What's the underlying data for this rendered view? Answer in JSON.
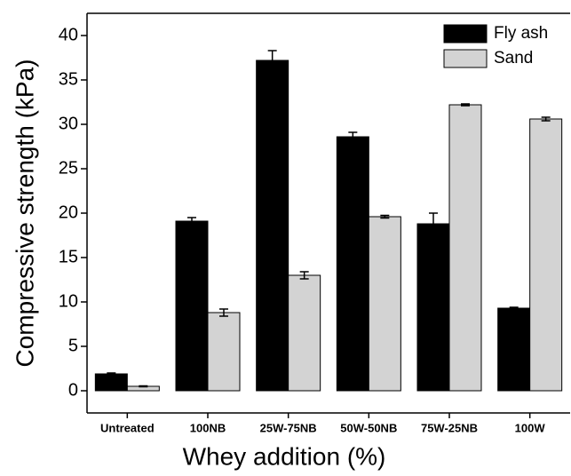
{
  "chart_data": {
    "type": "bar",
    "x_label": "Whey addition (%)",
    "y_label": "Compressive strength (kPa)",
    "categories": [
      "Untreated",
      "100NB",
      "25W-75NB",
      "50W-50NB",
      "75W-25NB",
      "100W"
    ],
    "series": [
      {
        "name": "Fly ash",
        "color": "#000000",
        "values": [
          1.9,
          19.1,
          37.2,
          28.6,
          18.8,
          9.3
        ],
        "errors": [
          0.1,
          0.4,
          1.1,
          0.5,
          1.2,
          0.1
        ]
      },
      {
        "name": "Sand",
        "color": "#d3d3d3",
        "values": [
          0.5,
          8.8,
          13.0,
          19.6,
          32.2,
          30.6
        ],
        "errors": [
          0.05,
          0.4,
          0.4,
          0.15,
          0.1,
          0.2
        ]
      }
    ],
    "ylim": [
      -2.5,
      42.5
    ],
    "yticks": [
      0,
      5,
      10,
      15,
      20,
      25,
      30,
      35,
      40
    ],
    "legend": "upper right",
    "grid": false
  }
}
